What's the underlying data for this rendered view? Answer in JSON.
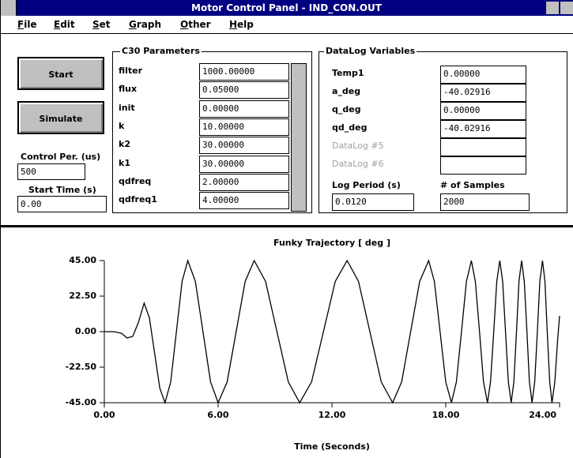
{
  "window": {
    "title": "Motor Control Panel - IND_CON.OUT",
    "menu": [
      "File",
      "Edit",
      "Set",
      "Graph",
      "Other",
      "Help"
    ]
  },
  "controls": {
    "buttons": [
      "Start",
      "Simulate"
    ],
    "fields": [
      {
        "label": "Control Per. (us)",
        "value": "500"
      },
      {
        "label": "Start Time (s)",
        "value": "0.00"
      }
    ]
  },
  "c30_parameters": {
    "title": "C30 Parameters",
    "rows": [
      {
        "label": "filter",
        "value": "1000.00000"
      },
      {
        "label": "flux",
        "value": "0.05000"
      },
      {
        "label": "init",
        "value": "0.00000"
      },
      {
        "label": "k",
        "value": "10.00000"
      },
      {
        "label": "k2",
        "value": "30.00000"
      },
      {
        "label": "k1",
        "value": "30.00000"
      },
      {
        "label": "qdfreq",
        "value": "2.00000"
      },
      {
        "label": "qdfreq1",
        "value": "4.00000"
      }
    ]
  },
  "datalog": {
    "title": "DataLog Variables",
    "rows": [
      {
        "label": "Temp1",
        "value": "0.00000"
      },
      {
        "label": "a_deg",
        "value": "-40.02916"
      },
      {
        "label": "q_deg",
        "value": "0.00000"
      },
      {
        "label": "qd_deg",
        "value": "-40.02916"
      },
      {
        "label": "DataLog #5"
      },
      {
        "label": "DataLog #6"
      }
    ],
    "log_period": {
      "label": "Log Period (s)",
      "value": "0.0120"
    },
    "samples": {
      "label": "# of Samples",
      "value": "2000"
    }
  },
  "chart_data": {
    "type": "line",
    "title": "Funky Trajectory [ deg ]",
    "x_label": "Time (Seconds)",
    "color": "#000000",
    "x": [
      0,
      0.5,
      0.9,
      1.2,
      1.5,
      1.8,
      2.1,
      2.375,
      2.65,
      2.925,
      3.2,
      3.5,
      3.8,
      4.1,
      4.4,
      4.8,
      5.2,
      5.6,
      6.0,
      6.475,
      6.95,
      7.425,
      7.9,
      8.5,
      9.1,
      9.7,
      10.3,
      10.925,
      11.55,
      12.175,
      12.8,
      13.4,
      14.0,
      14.6,
      15.2,
      15.675,
      16.15,
      16.625,
      17.1,
      17.4,
      17.7,
      18.0,
      18.3,
      18.56,
      18.83,
      19.09,
      19.35,
      19.56,
      19.78,
      19.99,
      20.2,
      20.36,
      20.53,
      20.69,
      20.85,
      21.0,
      21.15,
      21.3,
      21.45,
      21.59,
      21.73,
      21.86,
      22.0,
      22.14,
      22.28,
      22.41,
      22.55,
      22.69,
      22.83,
      22.96,
      23.1,
      23.23,
      23.35,
      23.48,
      23.6,
      23.75,
      23.9,
      24.0
    ],
    "values": [
      0,
      0,
      -1,
      -4,
      -3,
      6,
      18,
      8.77,
      -13.5,
      -35.77,
      -45,
      -31.82,
      0,
      31.82,
      45,
      31.82,
      0,
      -31.82,
      -45,
      -31.82,
      0,
      31.82,
      45,
      31.82,
      0,
      -31.82,
      -45,
      -31.82,
      0,
      31.82,
      45,
      31.82,
      0,
      -31.82,
      -45,
      -31.82,
      0,
      31.82,
      45,
      31.82,
      0,
      -31.82,
      -45,
      -31.82,
      0,
      31.82,
      45,
      31.82,
      0,
      -31.82,
      -45,
      -31.82,
      0,
      31.82,
      45,
      31.82,
      0,
      -31.82,
      -45,
      -31.82,
      0,
      31.82,
      45,
      31.82,
      0,
      -31.82,
      -45,
      -31.82,
      0,
      31.82,
      45,
      31.82,
      0,
      -31.82,
      -45,
      -31.82,
      -5,
      10
    ],
    "xlim": [
      0,
      24
    ],
    "xticks": [
      {
        "value": 0,
        "label": "0.00"
      },
      {
        "value": 6,
        "label": "6.00"
      },
      {
        "value": 12,
        "label": "12.00"
      },
      {
        "value": 18,
        "label": "18.00"
      },
      {
        "value": 24,
        "label": "24.00"
      }
    ],
    "ylim": [
      -45,
      45
    ],
    "yticks": [
      {
        "value": 45,
        "label": "45.00"
      },
      {
        "value": 22.5,
        "label": "22.50"
      },
      {
        "value": 0,
        "label": "0.00"
      },
      {
        "value": -22.5,
        "label": "-22.50"
      },
      {
        "value": -45,
        "label": "-45.00"
      }
    ]
  }
}
